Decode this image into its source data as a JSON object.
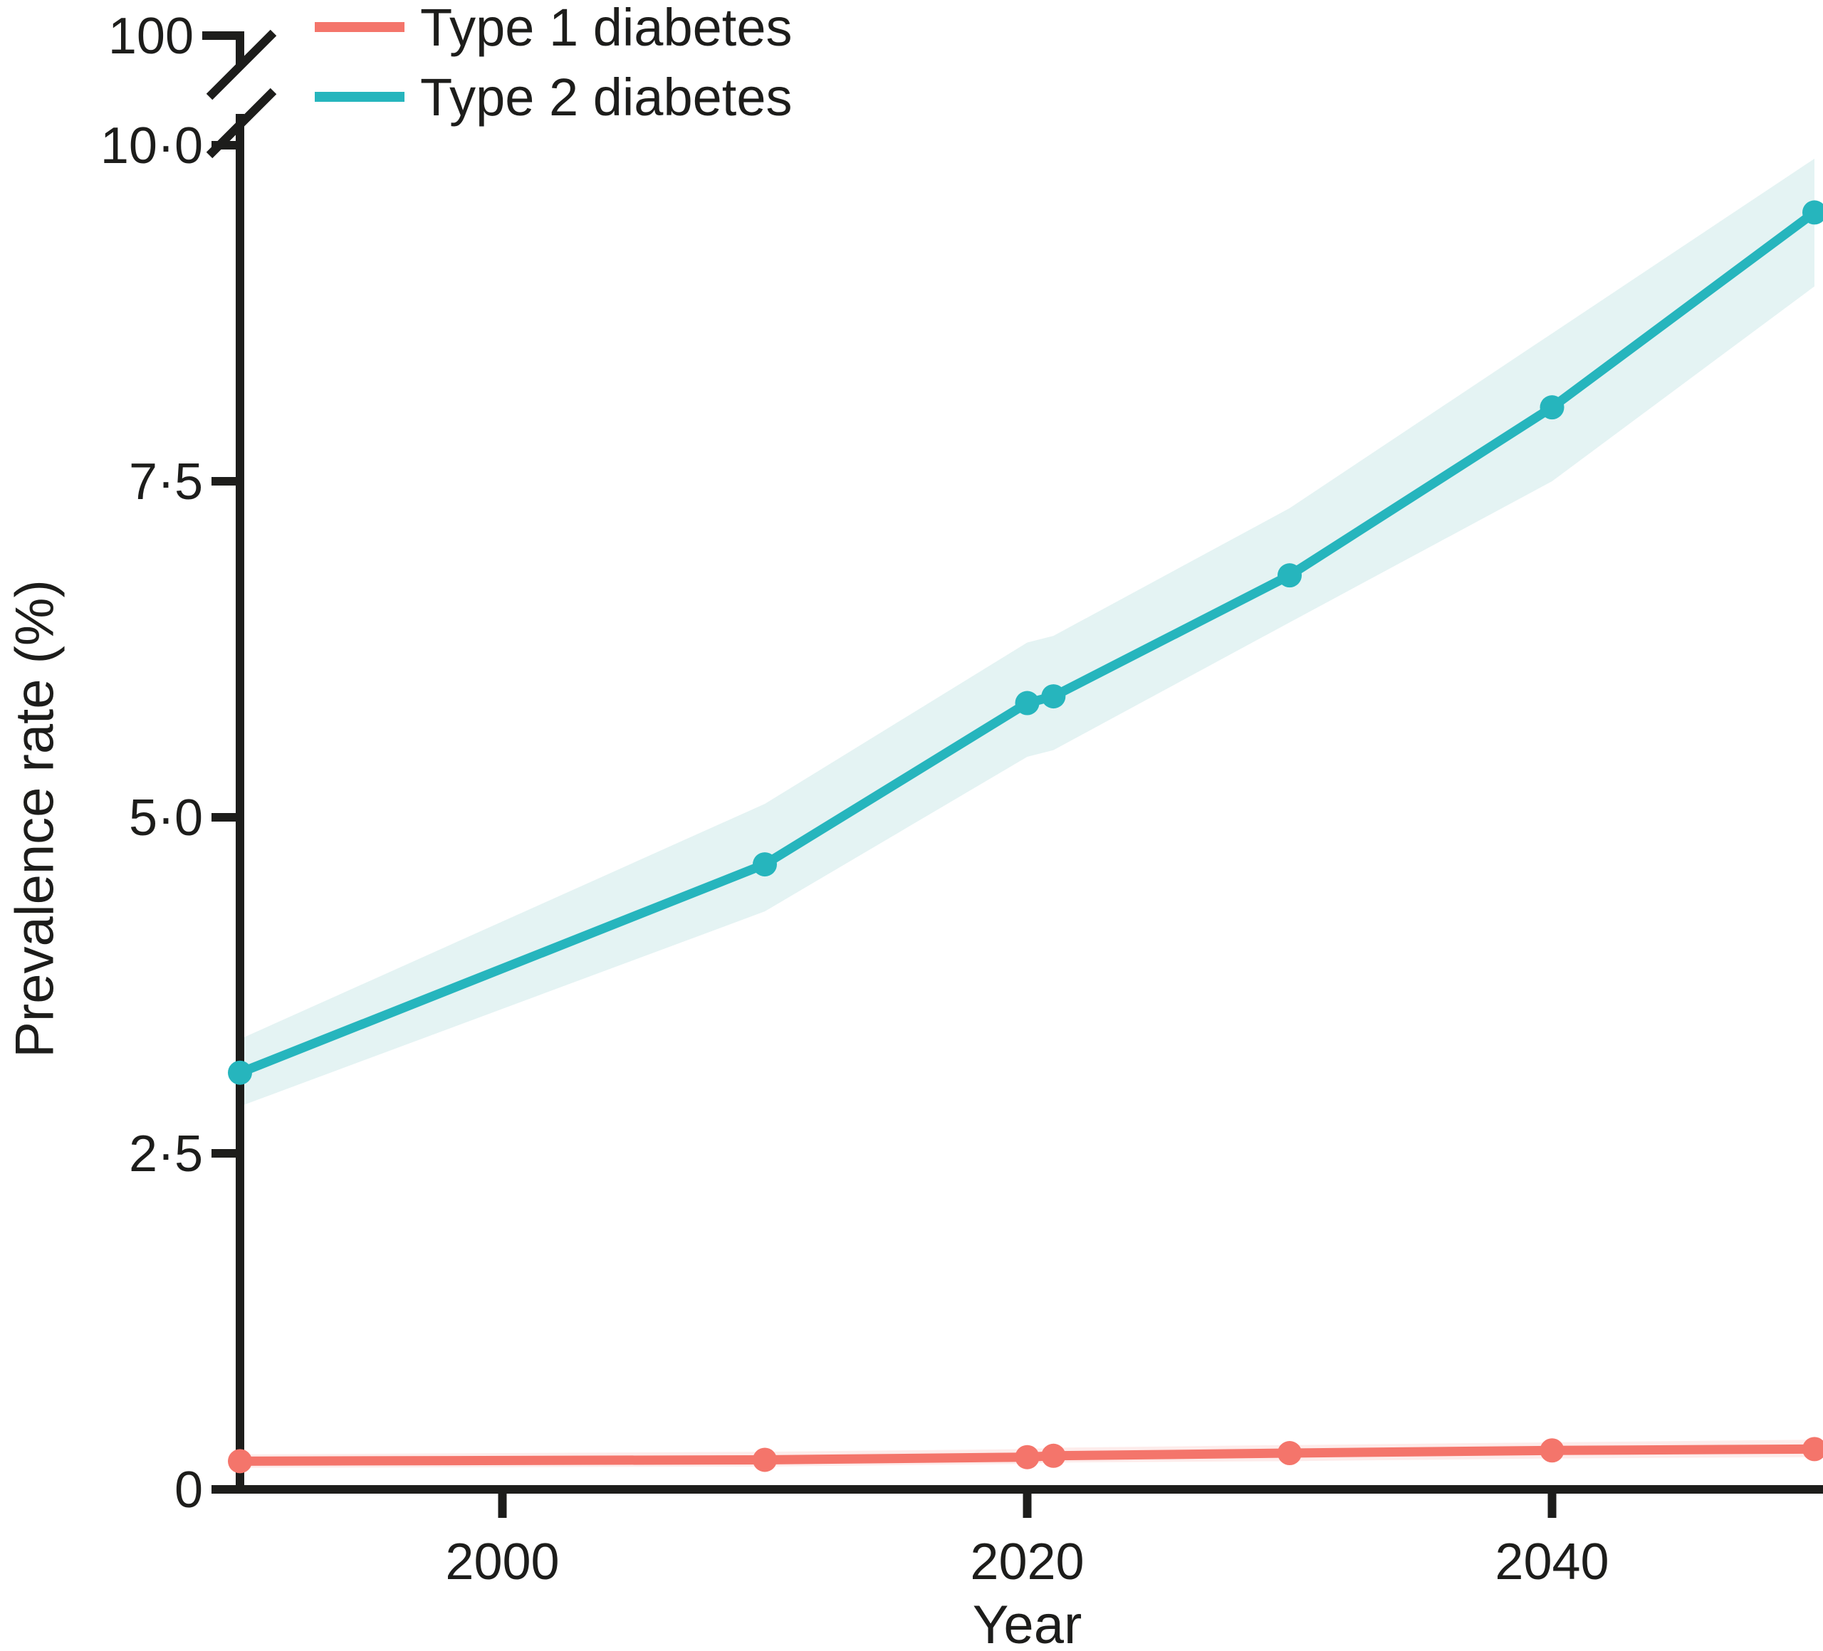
{
  "figure": {
    "title": "",
    "background": "#ffffff",
    "axis_color": "#1d1d1b",
    "text_color": "#1d1d1b"
  },
  "chart_data": {
    "type": "line",
    "title": "",
    "xlabel": "Year",
    "ylabel": "Prevalence rate (%)",
    "grid": false,
    "x": [
      1990,
      2010,
      2020,
      2021,
      2030,
      2040,
      2050
    ],
    "series": [
      {
        "name": "Type 1 diabetes",
        "color": "#f4756b",
        "band_color": "#fdeceb",
        "values": [
          0.21,
          0.22,
          0.24,
          0.25,
          0.27,
          0.29,
          0.3
        ],
        "lower": [
          0.16,
          0.17,
          0.19,
          0.2,
          0.21,
          0.23,
          0.24
        ],
        "upper": [
          0.26,
          0.28,
          0.3,
          0.31,
          0.33,
          0.35,
          0.37
        ]
      },
      {
        "name": "Type 2 diabetes",
        "color": "#26b5bd",
        "band_color": "#e4f3f3",
        "values": [
          3.1,
          4.65,
          5.85,
          5.9,
          6.8,
          8.05,
          9.5
        ],
        "lower": [
          2.85,
          4.3,
          5.45,
          5.5,
          6.45,
          7.5,
          8.95
        ],
        "upper": [
          3.35,
          5.1,
          6.3,
          6.35,
          7.3,
          8.6,
          9.9
        ]
      }
    ],
    "y_axis": {
      "ticks": [
        0,
        2.5,
        5.0,
        7.5,
        10.0
      ],
      "tick_labels": [
        "0",
        "2·5",
        "5·0",
        "7·5",
        "10·0"
      ],
      "break_label": "100",
      "has_axis_break": true,
      "range_below_break": [
        0,
        10.0
      ]
    },
    "x_axis": {
      "ticks": [
        2000,
        2020,
        2040
      ],
      "tick_labels": [
        "2000",
        "2020",
        "2040"
      ],
      "range": [
        1990,
        2050.4
      ]
    },
    "legend": {
      "position": "top-left",
      "entries": [
        "Type 1 diabetes",
        "Type 2 diabetes"
      ]
    }
  }
}
